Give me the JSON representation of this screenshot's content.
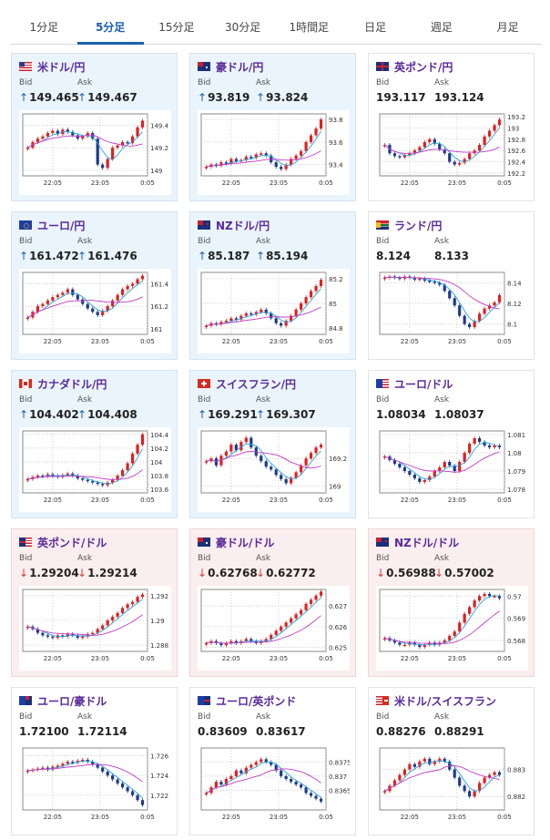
{
  "tabs": [
    "1分足",
    "5分足",
    "15分足",
    "30分足",
    "1時間足",
    "日足",
    "週足",
    "月足"
  ],
  "active_tab": 1,
  "bid_label": "Bid",
  "ask_label": "Ask",
  "x_ticks": [
    "22:05",
    "23:05",
    "0:05"
  ],
  "colors": {
    "up": "#e02020",
    "down": "#1f3a8a",
    "ma_short": "#27a3d8",
    "ma_long": "#c23bc7"
  },
  "cards": [
    {
      "name": "米ドル/円",
      "flag": "us",
      "tint": "blue",
      "dir": "up",
      "bid": "149.465",
      "ask": "149.467",
      "chart_data": {
        "type": "candlestick",
        "y_ticks": [
          "149.4",
          "149.2",
          "149"
        ],
        "ylim": [
          148.95,
          149.5
        ],
        "series": [
          149.2,
          149.25,
          149.28,
          149.3,
          149.33,
          149.35,
          149.32,
          149.36,
          149.34,
          149.31,
          149.28,
          149.3,
          149.33,
          149.28,
          149.05,
          149.02,
          149.1,
          149.2,
          149.22,
          149.25,
          149.24,
          149.3,
          149.38,
          149.44
        ]
      }
    },
    {
      "name": "豪ドル/円",
      "flag": "au",
      "tint": "blue",
      "dir": "up",
      "bid": "93.819",
      "ask": "93.824",
      "chart_data": {
        "type": "candlestick",
        "y_ticks": [
          "93.8",
          "93.6",
          "93.4"
        ],
        "ylim": [
          93.3,
          93.85
        ],
        "series": [
          93.38,
          93.4,
          93.39,
          93.42,
          93.41,
          93.45,
          93.43,
          93.44,
          93.47,
          93.46,
          93.49,
          93.5,
          93.48,
          93.42,
          93.38,
          93.36,
          93.4,
          93.45,
          93.48,
          93.52,
          93.6,
          93.66,
          93.72,
          93.8
        ]
      }
    },
    {
      "name": "英ポンド/円",
      "flag": "uk",
      "tint": "white",
      "dir": "none",
      "bid": "193.117",
      "ask": "193.124",
      "chart_data": {
        "type": "candlestick",
        "y_ticks": [
          "193.2",
          "193",
          "192.8",
          "192.6",
          "192.4",
          "192.2"
        ],
        "ylim": [
          192.15,
          193.25
        ],
        "series": [
          192.7,
          192.55,
          192.5,
          192.48,
          192.52,
          192.55,
          192.6,
          192.66,
          192.75,
          192.8,
          192.72,
          192.62,
          192.55,
          192.4,
          192.35,
          192.38,
          192.45,
          192.55,
          192.6,
          192.7,
          192.85,
          192.95,
          193.05,
          193.15
        ]
      }
    },
    {
      "name": "ユーロ/円",
      "flag": "eu",
      "tint": "blue",
      "dir": "up",
      "bid": "161.472",
      "ask": "161.476",
      "chart_data": {
        "type": "candlestick",
        "y_ticks": [
          "161.4",
          "161.2",
          "161"
        ],
        "ylim": [
          160.95,
          161.5
        ],
        "series": [
          161.1,
          161.15,
          161.2,
          161.22,
          161.25,
          161.28,
          161.3,
          161.32,
          161.35,
          161.3,
          161.26,
          161.22,
          161.18,
          161.15,
          161.12,
          161.16,
          161.2,
          161.25,
          161.3,
          161.35,
          161.38,
          161.4,
          161.44,
          161.47
        ]
      }
    },
    {
      "name": "NZドル/円",
      "flag": "nz",
      "tint": "blue",
      "dir": "up",
      "bid": "85.187",
      "ask": "85.194",
      "chart_data": {
        "type": "candlestick",
        "y_ticks": [
          "85.2",
          "85",
          "84.8"
        ],
        "ylim": [
          84.75,
          85.25
        ],
        "series": [
          84.82,
          84.84,
          84.83,
          84.85,
          84.86,
          84.88,
          84.87,
          84.9,
          84.92,
          84.91,
          84.93,
          84.95,
          84.92,
          84.88,
          84.84,
          84.82,
          84.86,
          84.9,
          84.95,
          85.0,
          85.05,
          85.1,
          85.14,
          85.19
        ]
      }
    },
    {
      "name": "ランド/円",
      "flag": "za",
      "tint": "white",
      "dir": "none",
      "bid": "8.124",
      "ask": "8.133",
      "chart_data": {
        "type": "candlestick",
        "y_ticks": [
          "8.14",
          "8.12",
          "8.1"
        ],
        "ylim": [
          8.09,
          8.15
        ],
        "series": [
          8.145,
          8.146,
          8.145,
          8.144,
          8.146,
          8.145,
          8.143,
          8.144,
          8.142,
          8.141,
          8.14,
          8.138,
          8.132,
          8.125,
          8.118,
          8.108,
          8.1,
          8.097,
          8.103,
          8.11,
          8.115,
          8.118,
          8.121,
          8.128
        ]
      }
    },
    {
      "name": "カナダドル/円",
      "flag": "ca",
      "tint": "blue",
      "dir": "up",
      "bid": "104.402",
      "ask": "104.408",
      "chart_data": {
        "type": "candlestick",
        "y_ticks": [
          "104.4",
          "104.2",
          "104",
          "103.8",
          "103.6"
        ],
        "ylim": [
          103.55,
          104.45
        ],
        "series": [
          103.75,
          103.78,
          103.8,
          103.79,
          103.82,
          103.8,
          103.78,
          103.81,
          103.83,
          103.8,
          103.76,
          103.74,
          103.72,
          103.7,
          103.68,
          103.66,
          103.7,
          103.74,
          103.8,
          103.88,
          103.98,
          104.12,
          104.25,
          104.4
        ]
      }
    },
    {
      "name": "スイスフラン/円",
      "flag": "ch",
      "tint": "blue",
      "dir": "up",
      "bid": "169.291",
      "ask": "169.307",
      "chart_data": {
        "type": "candlestick",
        "y_ticks": [
          "169.2",
          "169"
        ],
        "ylim": [
          168.95,
          169.4
        ],
        "series": [
          169.18,
          169.2,
          169.15,
          169.22,
          169.25,
          169.3,
          169.26,
          169.32,
          169.35,
          169.28,
          169.22,
          169.18,
          169.14,
          169.12,
          169.08,
          169.05,
          169.02,
          169.06,
          169.1,
          169.15,
          169.2,
          169.24,
          169.28,
          169.3
        ]
      }
    },
    {
      "name": "ユーロ/ドル",
      "flag": "euus",
      "tint": "white",
      "dir": "none",
      "bid": "1.08034",
      "ask": "1.08037",
      "chart_data": {
        "type": "candlestick",
        "y_ticks": [
          "1.081",
          "1.08",
          "1.079",
          "1.078"
        ],
        "ylim": [
          1.0778,
          1.0812
        ],
        "series": [
          1.0798,
          1.0796,
          1.0794,
          1.0792,
          1.079,
          1.0788,
          1.0786,
          1.0784,
          1.0785,
          1.0787,
          1.079,
          1.0792,
          1.0795,
          1.0793,
          1.079,
          1.0795,
          1.08,
          1.0805,
          1.0808,
          1.0806,
          1.0804,
          1.0803,
          1.0804,
          1.0803
        ]
      }
    },
    {
      "name": "英ポンド/ドル",
      "flag": "ukus",
      "tint": "pink",
      "dir": "down",
      "bid": "1.29204",
      "ask": "1.29214",
      "chart_data": {
        "type": "candlestick",
        "y_ticks": [
          "1.292",
          "1.29",
          "1.288"
        ],
        "ylim": [
          1.2875,
          1.2925
        ],
        "series": [
          1.2895,
          1.2893,
          1.289,
          1.2888,
          1.2887,
          1.2886,
          1.2888,
          1.2887,
          1.2889,
          1.2888,
          1.2886,
          1.2887,
          1.2889,
          1.289,
          1.2893,
          1.2896,
          1.29,
          1.2903,
          1.2906,
          1.291,
          1.2913,
          1.2915,
          1.2919,
          1.2921
        ]
      }
    },
    {
      "name": "豪ドル/ドル",
      "flag": "au",
      "tint": "pink",
      "dir": "down",
      "bid": "0.62768",
      "ask": "0.62772",
      "chart_data": {
        "type": "candlestick",
        "y_ticks": [
          "0.627",
          "0.626",
          "0.625"
        ],
        "ylim": [
          0.6248,
          0.6278
        ],
        "series": [
          0.6252,
          0.6253,
          0.6252,
          0.6251,
          0.6252,
          0.6253,
          0.6252,
          0.6253,
          0.6254,
          0.6253,
          0.6252,
          0.6253,
          0.6254,
          0.6256,
          0.6258,
          0.626,
          0.6262,
          0.6264,
          0.6266,
          0.6268,
          0.6271,
          0.6273,
          0.6275,
          0.6277
        ]
      }
    },
    {
      "name": "NZドル/ドル",
      "flag": "nz",
      "tint": "pink",
      "dir": "down",
      "bid": "0.56988",
      "ask": "0.57002",
      "chart_data": {
        "type": "candlestick",
        "y_ticks": [
          "0.57",
          "0.569",
          "0.568"
        ],
        "ylim": [
          0.5675,
          0.5703
        ],
        "series": [
          0.5681,
          0.568,
          0.5679,
          0.5678,
          0.5678,
          0.5679,
          0.5678,
          0.5677,
          0.5678,
          0.5679,
          0.5678,
          0.5679,
          0.568,
          0.5682,
          0.5684,
          0.5688,
          0.5692,
          0.5695,
          0.5698,
          0.57,
          0.5701,
          0.57,
          0.57,
          0.5699
        ]
      }
    },
    {
      "name": "ユーロ/豪ドル",
      "flag": "euau",
      "tint": "white",
      "dir": "none",
      "bid": "1.72100",
      "ask": "1.72114",
      "chart_data": {
        "type": "candlestick",
        "y_ticks": [
          "1.726",
          "1.724",
          "1.722"
        ],
        "ylim": [
          1.7205,
          1.7268
        ],
        "series": [
          1.7245,
          1.7246,
          1.7247,
          1.7248,
          1.7246,
          1.7249,
          1.725,
          1.7252,
          1.7254,
          1.7253,
          1.7255,
          1.7256,
          1.7254,
          1.7251,
          1.7248,
          1.7244,
          1.724,
          1.7236,
          1.7232,
          1.7228,
          1.7224,
          1.722,
          1.7215,
          1.721
        ]
      }
    },
    {
      "name": "ユーロ/英ポンド",
      "flag": "euuk",
      "tint": "white",
      "dir": "none",
      "bid": "0.83609",
      "ask": "0.83617",
      "chart_data": {
        "type": "candlestick",
        "y_ticks": [
          "0.8375",
          "0.837",
          "0.8365"
        ],
        "ylim": [
          0.8358,
          0.838
        ],
        "series": [
          0.8364,
          0.8366,
          0.8368,
          0.8367,
          0.8369,
          0.837,
          0.8372,
          0.8371,
          0.8373,
          0.8374,
          0.8375,
          0.8376,
          0.8375,
          0.8374,
          0.8372,
          0.837,
          0.8369,
          0.8368,
          0.8367,
          0.8366,
          0.8364,
          0.8363,
          0.8362,
          0.8361
        ]
      }
    },
    {
      "name": "米ドル/スイスフラン",
      "flag": "usch",
      "tint": "white",
      "dir": "none",
      "bid": "0.88276",
      "ask": "0.88291",
      "chart_data": {
        "type": "candlestick",
        "y_ticks": [
          "0.883",
          "0.882"
        ],
        "ylim": [
          0.8815,
          0.8838
        ],
        "series": [
          0.8822,
          0.8824,
          0.8826,
          0.8828,
          0.883,
          0.8832,
          0.8831,
          0.8833,
          0.8834,
          0.8832,
          0.8833,
          0.8834,
          0.8833,
          0.883,
          0.8827,
          0.8824,
          0.8822,
          0.882,
          0.8822,
          0.8825,
          0.8827,
          0.8828,
          0.8829,
          0.8828
        ]
      }
    }
  ]
}
